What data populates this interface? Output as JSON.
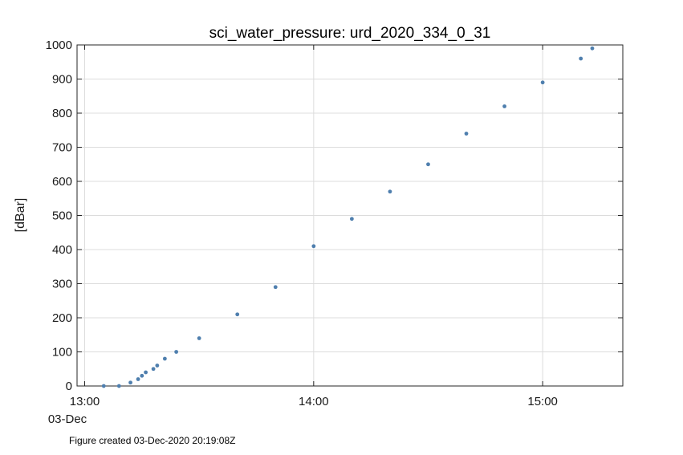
{
  "chart_data": {
    "type": "scatter",
    "title": "sci_water_pressure: urd_2020_334_0_31",
    "ylabel": "[dBar]",
    "xlabel": "",
    "date_label": "03-Dec",
    "xlim": [
      "12:58",
      "15:21"
    ],
    "ylim": [
      0,
      1000
    ],
    "x_ticks": [
      "13:00",
      "14:00",
      "15:00"
    ],
    "y_ticks": [
      0,
      100,
      200,
      300,
      400,
      500,
      600,
      700,
      800,
      900,
      1000
    ],
    "grid": true,
    "marker_color": "#4f7fae",
    "series": [
      {
        "points": [
          [
            "13:05",
            0
          ],
          [
            "13:09",
            0
          ],
          [
            "13:12",
            10
          ],
          [
            "13:14",
            20
          ],
          [
            "13:15",
            30
          ],
          [
            "13:16",
            40
          ],
          [
            "13:18",
            50
          ],
          [
            "13:19",
            60
          ],
          [
            "13:21",
            80
          ],
          [
            "13:24",
            100
          ],
          [
            "13:30",
            140
          ],
          [
            "13:40",
            210
          ],
          [
            "13:50",
            290
          ],
          [
            "14:00",
            410
          ],
          [
            "14:10",
            490
          ],
          [
            "14:20",
            570
          ],
          [
            "14:30",
            650
          ],
          [
            "14:40",
            740
          ],
          [
            "14:50",
            820
          ],
          [
            "15:00",
            890
          ],
          [
            "15:10",
            960
          ],
          [
            "15:13",
            990
          ]
        ]
      }
    ]
  },
  "footer": "Figure created 03-Dec-2020 20:19:08Z"
}
